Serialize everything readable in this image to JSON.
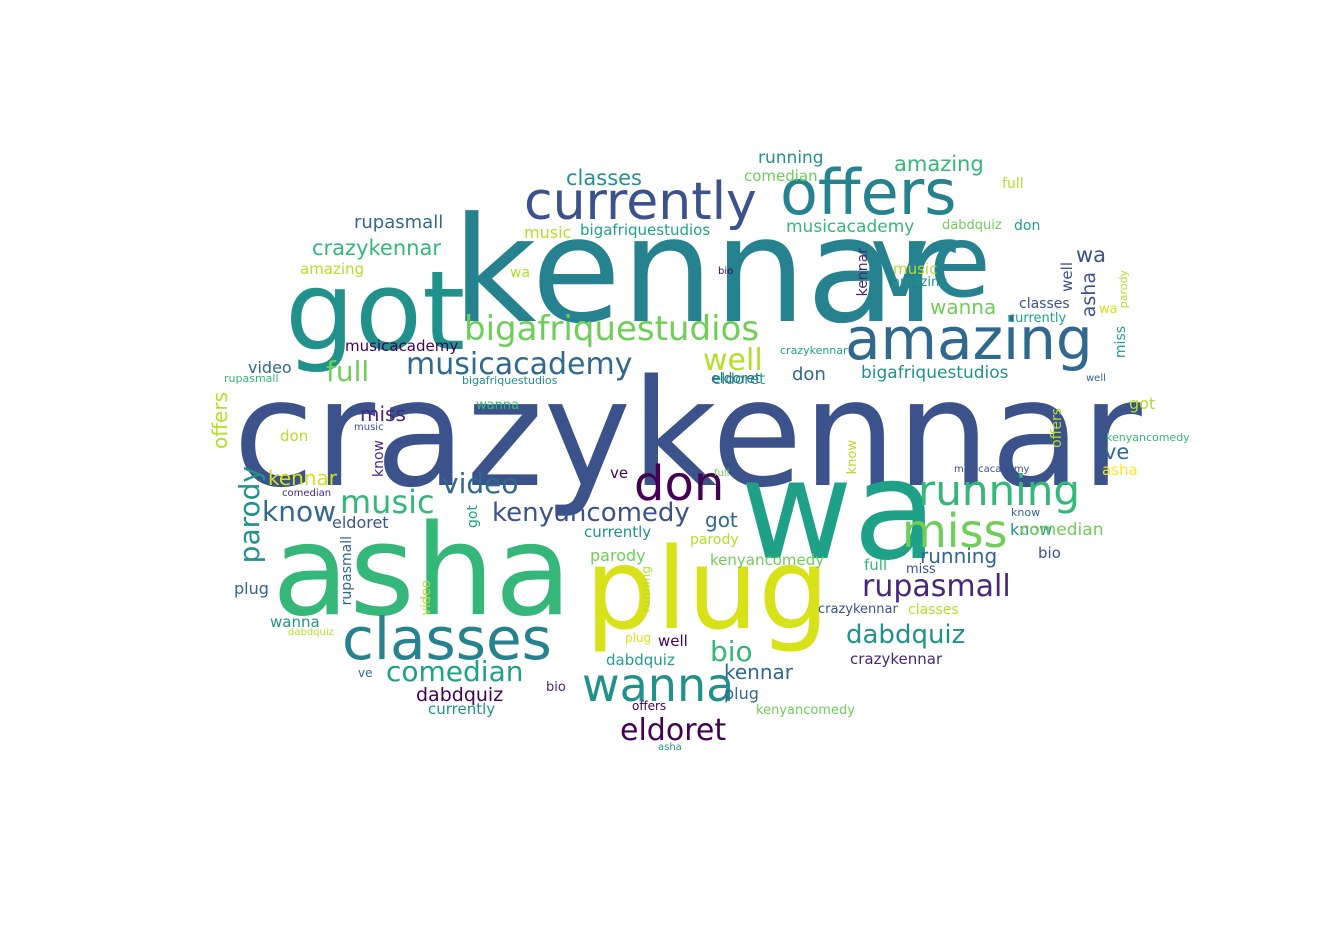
{
  "palette": {
    "navy": "#3b528b",
    "purple": "#482878",
    "deep_purple": "#440154",
    "teal": "#26828e",
    "blue_teal": "#31688e",
    "green_teal": "#21918c",
    "sea_green": "#1fa187",
    "green": "#35b779",
    "light_green": "#6ece58",
    "lime": "#b5de2b",
    "yellow": "#d8e219",
    "bright_yellow": "#fde725"
  },
  "words": [
    {
      "text": "crazykennar",
      "color": "#3b528b"
    },
    {
      "text": "kennar",
      "color": "#26828e"
    },
    {
      "text": "ve",
      "color": "#26828e"
    },
    {
      "text": "got",
      "color": "#21918c"
    },
    {
      "text": "offers",
      "color": "#26828e"
    },
    {
      "text": "currently",
      "color": "#3b528b"
    },
    {
      "text": "amazing",
      "color": "#31688e"
    },
    {
      "text": "bigafriquestudios",
      "color": "#6ece58"
    },
    {
      "text": "wa",
      "color": "#1fa187"
    },
    {
      "text": "asha",
      "color": "#35b779"
    },
    {
      "text": "plug",
      "color": "#d8e219"
    },
    {
      "text": "classes",
      "color": "#26828e"
    },
    {
      "text": "wanna",
      "color": "#21918c"
    },
    {
      "text": "don",
      "color": "#440154"
    },
    {
      "text": "running",
      "color": "#35b779"
    },
    {
      "text": "miss",
      "color": "#6ece58"
    },
    {
      "text": "musicacademy",
      "color": "#31688e"
    },
    {
      "text": "well",
      "color": "#b5de2b"
    },
    {
      "text": "full",
      "color": "#6ece58"
    },
    {
      "text": "music",
      "color": "#35b779"
    },
    {
      "text": "video",
      "color": "#31688e"
    },
    {
      "text": "kenyancomedy",
      "color": "#3b528b"
    },
    {
      "text": "know",
      "color": "#31688e"
    },
    {
      "text": "parody",
      "color": "#21918c"
    },
    {
      "text": "eldoret",
      "color": "#440154"
    },
    {
      "text": "comedian",
      "color": "#1fa187"
    },
    {
      "text": "rupasmall",
      "color": "#482878"
    },
    {
      "text": "dabdquiz",
      "color": "#21918c"
    },
    {
      "text": "bio",
      "color": "#35b779"
    },
    {
      "text": "crazykennar",
      "color": "#35b779"
    },
    {
      "text": "classes",
      "color": "#21918c"
    },
    {
      "text": "rupasmall",
      "color": "#31688e"
    },
    {
      "text": "amazing",
      "color": "#35b779"
    },
    {
      "text": "running",
      "color": "#21918c"
    },
    {
      "text": "comedian",
      "color": "#6ece58"
    },
    {
      "text": "music",
      "color": "#b5de2b"
    },
    {
      "text": "bigafriquestudios",
      "color": "#1fa187"
    },
    {
      "text": "musicacademy",
      "color": "#35b779"
    },
    {
      "text": "full",
      "color": "#b5de2b"
    },
    {
      "text": "don",
      "color": "#1fa187"
    },
    {
      "text": "dabdquiz",
      "color": "#6ece58"
    },
    {
      "text": "kennar",
      "color": "#482878"
    },
    {
      "text": "music",
      "color": "#b5de2b"
    },
    {
      "text": "amazing",
      "color": "#21918c"
    },
    {
      "text": "bio",
      "color": "#440154"
    },
    {
      "text": "wa",
      "color": "#b5de2b"
    },
    {
      "text": "wa",
      "color": "#3b528b"
    },
    {
      "text": "asha",
      "color": "#3b528b"
    },
    {
      "text": "well",
      "color": "#3b528b"
    },
    {
      "text": "classes",
      "color": "#3b528b"
    },
    {
      "text": "currently",
      "color": "#1fa187"
    },
    {
      "text": "wa",
      "color": "#d8e219"
    },
    {
      "text": "parody",
      "color": "#b5de2b"
    },
    {
      "text": "miss",
      "color": "#1fa187"
    },
    {
      "text": "wanna",
      "color": "#6ece58"
    },
    {
      "text": "amazing",
      "color": "#b5de2b"
    },
    {
      "text": "crazykennar",
      "color": "#1fa187"
    },
    {
      "text": "musicacademy",
      "color": "#440154"
    },
    {
      "text": "rupasmall",
      "color": "#35b779"
    },
    {
      "text": "well",
      "color": "#31688e"
    },
    {
      "text": "video",
      "color": "#31688e"
    },
    {
      "text": "kenyancomedy",
      "color": "#35b779"
    },
    {
      "text": "bigafriquestudios",
      "color": "#21918c"
    },
    {
      "text": "wanna",
      "color": "#35b779"
    },
    {
      "text": "miss",
      "color": "#482878"
    },
    {
      "text": "offers",
      "color": "#b5de2b"
    },
    {
      "text": "music",
      "color": "#3b528b"
    },
    {
      "text": "don",
      "color": "#b5de2b"
    },
    {
      "text": "know",
      "color": "#482878"
    },
    {
      "text": "eldoret",
      "color": "#1fa187"
    },
    {
      "text": "don",
      "color": "#31688e"
    },
    {
      "text": "bigafriquestudios",
      "color": "#21918c"
    },
    {
      "text": "offers",
      "color": "#b5de2b"
    },
    {
      "text": "got",
      "color": "#b5de2b"
    },
    {
      "text": "eldoret",
      "color": "#31688e"
    },
    {
      "text": "ve",
      "color": "#31688e"
    },
    {
      "text": "know",
      "color": "#b5de2b"
    },
    {
      "text": "asha",
      "color": "#fde725"
    },
    {
      "text": "musicacademy",
      "color": "#3b528b"
    },
    {
      "text": "kennar",
      "color": "#d8e219"
    },
    {
      "text": "ve",
      "color": "#440154"
    },
    {
      "text": "full",
      "color": "#6ece58"
    },
    {
      "text": "comedian",
      "color": "#482878"
    },
    {
      "text": "know",
      "color": "#31688e"
    },
    {
      "text": "eldoret",
      "color": "#3b528b"
    },
    {
      "text": "got",
      "color": "#1fa187"
    },
    {
      "text": "got",
      "color": "#31688e"
    },
    {
      "text": "currently",
      "color": "#21918c"
    },
    {
      "text": "parody",
      "color": "#6ece58"
    },
    {
      "text": "parody",
      "color": "#b5de2b"
    },
    {
      "text": "know",
      "color": "#21918c"
    },
    {
      "text": "comedian",
      "color": "#6ece58"
    },
    {
      "text": "bio",
      "color": "#3b528b"
    },
    {
      "text": "kenyancomedy",
      "color": "#6ece58"
    },
    {
      "text": "running",
      "color": "#31688e"
    },
    {
      "text": "plug",
      "color": "#31688e"
    },
    {
      "text": "rupasmall",
      "color": "#31688e"
    },
    {
      "text": "running",
      "color": "#b5de2b"
    },
    {
      "text": "full",
      "color": "#35b779"
    },
    {
      "text": "miss",
      "color": "#3b528b"
    },
    {
      "text": "crazykennar",
      "color": "#3b528b"
    },
    {
      "text": "classes",
      "color": "#b5de2b"
    },
    {
      "text": "wanna",
      "color": "#21918c"
    },
    {
      "text": "dabdquiz",
      "color": "#b5de2b"
    },
    {
      "text": "video",
      "color": "#b5de2b"
    },
    {
      "text": "plug",
      "color": "#d8e219"
    },
    {
      "text": "well",
      "color": "#440154"
    },
    {
      "text": "dabdquiz",
      "color": "#1fa187"
    },
    {
      "text": "crazykennar",
      "color": "#482878"
    },
    {
      "text": "kennar",
      "color": "#31688e"
    },
    {
      "text": "ve",
      "color": "#31688e"
    },
    {
      "text": "plug",
      "color": "#31688e"
    },
    {
      "text": "bio",
      "color": "#482878"
    },
    {
      "text": "dabdquiz",
      "color": "#440154"
    },
    {
      "text": "currently",
      "color": "#21918c"
    },
    {
      "text": "offers",
      "color": "#440154"
    },
    {
      "text": "kenyancomedy",
      "color": "#6ece58"
    },
    {
      "text": "asha",
      "color": "#21918c"
    },
    {
      "text": "video",
      "color": "#35b779"
    }
  ]
}
